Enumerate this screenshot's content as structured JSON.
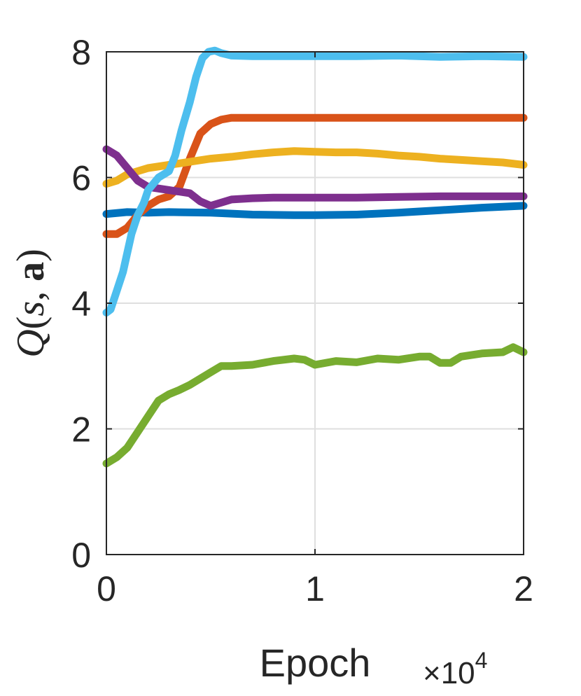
{
  "chart_data": {
    "type": "line",
    "title": "",
    "xlabel": "Epoch",
    "ylabel": "Q(s, a)",
    "x_exponent_label": "×10^4",
    "xlim": [
      0,
      2
    ],
    "ylim": [
      0,
      8
    ],
    "x_ticks": [
      0,
      1,
      2
    ],
    "y_ticks": [
      0,
      2,
      4,
      6,
      8
    ],
    "x_tick_labels": [
      "0",
      "1",
      "2"
    ],
    "y_tick_labels": [
      "0",
      "2",
      "4",
      "6",
      "8"
    ],
    "grid": true,
    "legend": "none",
    "series": [
      {
        "color": "#0072BD",
        "x": [
          0,
          0.1,
          0.2,
          0.3,
          0.5,
          0.7,
          0.9,
          1.0,
          1.2,
          1.4,
          1.6,
          1.8,
          2.0
        ],
        "y": [
          5.42,
          5.45,
          5.44,
          5.45,
          5.44,
          5.41,
          5.4,
          5.4,
          5.41,
          5.44,
          5.48,
          5.52,
          5.55
        ]
      },
      {
        "color": "#D95319",
        "x": [
          0,
          0.05,
          0.1,
          0.15,
          0.2,
          0.25,
          0.3,
          0.35,
          0.4,
          0.45,
          0.5,
          0.55,
          0.6,
          0.7,
          0.8,
          1.0,
          1.2,
          1.5,
          1.8,
          2.0
        ],
        "y": [
          5.1,
          5.1,
          5.2,
          5.4,
          5.55,
          5.65,
          5.7,
          5.85,
          6.3,
          6.7,
          6.85,
          6.92,
          6.95,
          6.95,
          6.95,
          6.95,
          6.95,
          6.95,
          6.95,
          6.95
        ]
      },
      {
        "color": "#EDB120",
        "x": [
          0,
          0.05,
          0.1,
          0.2,
          0.3,
          0.4,
          0.5,
          0.6,
          0.7,
          0.8,
          0.9,
          1.0,
          1.1,
          1.2,
          1.3,
          1.4,
          1.5,
          1.6,
          1.7,
          1.8,
          1.9,
          2.0
        ],
        "y": [
          5.9,
          5.95,
          6.05,
          6.15,
          6.2,
          6.25,
          6.3,
          6.33,
          6.37,
          6.4,
          6.42,
          6.41,
          6.4,
          6.4,
          6.38,
          6.35,
          6.33,
          6.3,
          6.28,
          6.26,
          6.24,
          6.2
        ]
      },
      {
        "color": "#7E2F8E",
        "x": [
          0,
          0.05,
          0.1,
          0.15,
          0.2,
          0.3,
          0.4,
          0.45,
          0.5,
          0.55,
          0.6,
          0.7,
          0.8,
          1.0,
          1.2,
          1.4,
          1.6,
          1.8,
          2.0
        ],
        "y": [
          6.45,
          6.35,
          6.15,
          5.95,
          5.85,
          5.8,
          5.75,
          5.62,
          5.55,
          5.6,
          5.65,
          5.67,
          5.68,
          5.68,
          5.68,
          5.69,
          5.7,
          5.7,
          5.7
        ]
      },
      {
        "color": "#77AC30",
        "x": [
          0,
          0.05,
          0.1,
          0.15,
          0.2,
          0.25,
          0.3,
          0.35,
          0.4,
          0.45,
          0.5,
          0.55,
          0.6,
          0.7,
          0.8,
          0.9,
          0.95,
          1.0,
          1.1,
          1.2,
          1.3,
          1.4,
          1.5,
          1.55,
          1.6,
          1.65,
          1.7,
          1.8,
          1.9,
          1.95,
          2.0
        ],
        "y": [
          1.45,
          1.55,
          1.7,
          1.95,
          2.2,
          2.45,
          2.55,
          2.62,
          2.7,
          2.8,
          2.9,
          3.0,
          3.0,
          3.02,
          3.08,
          3.12,
          3.1,
          3.02,
          3.08,
          3.06,
          3.12,
          3.1,
          3.15,
          3.15,
          3.05,
          3.05,
          3.15,
          3.2,
          3.22,
          3.3,
          3.22
        ]
      },
      {
        "color": "#4DBEEE",
        "x": [
          0,
          0.02,
          0.05,
          0.08,
          0.1,
          0.12,
          0.15,
          0.18,
          0.2,
          0.25,
          0.3,
          0.33,
          0.36,
          0.4,
          0.43,
          0.46,
          0.49,
          0.52,
          0.55,
          0.6,
          0.7,
          0.8,
          1.0,
          1.2,
          1.4,
          1.6,
          1.8,
          2.0
        ],
        "y": [
          3.85,
          3.9,
          4.2,
          4.5,
          4.8,
          5.1,
          5.4,
          5.6,
          5.8,
          6.0,
          6.1,
          6.35,
          6.75,
          7.2,
          7.6,
          7.9,
          8.0,
          8.02,
          7.98,
          7.94,
          7.93,
          7.93,
          7.93,
          7.93,
          7.94,
          7.92,
          7.93,
          7.92
        ]
      }
    ]
  }
}
